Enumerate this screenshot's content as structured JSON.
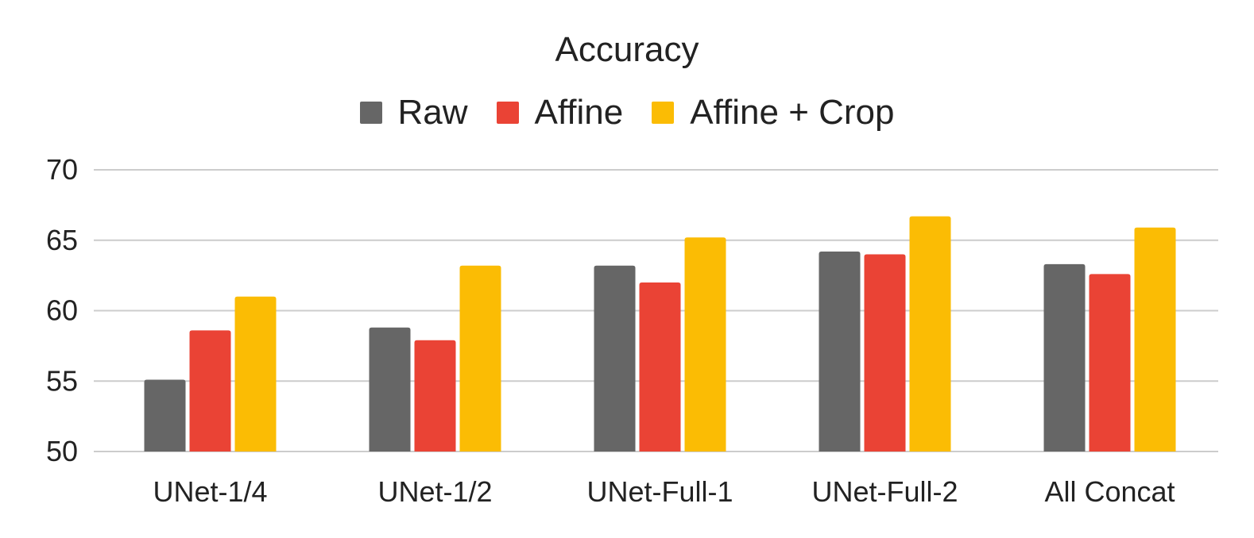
{
  "chart_data": {
    "type": "bar",
    "title": "Accuracy",
    "xlabel": "",
    "ylabel": "",
    "categories": [
      "UNet-1/4",
      "UNet-1/2",
      "UNet-Full-1",
      "UNet-Full-2",
      "All Concat"
    ],
    "series": [
      {
        "name": "Raw",
        "color": "#666666",
        "values": [
          55.1,
          58.8,
          63.2,
          64.2,
          63.3
        ]
      },
      {
        "name": "Affine",
        "color": "#ea4335",
        "values": [
          58.6,
          57.9,
          62.0,
          64.0,
          62.6
        ]
      },
      {
        "name": "Affine + Crop",
        "color": "#fbbc04",
        "values": [
          61.0,
          63.2,
          65.2,
          66.7,
          65.9
        ]
      }
    ],
    "ylim": [
      50,
      70
    ],
    "yticks": [
      "50",
      "55",
      "60",
      "65",
      "70"
    ],
    "grid": true,
    "legend_position": "top"
  }
}
